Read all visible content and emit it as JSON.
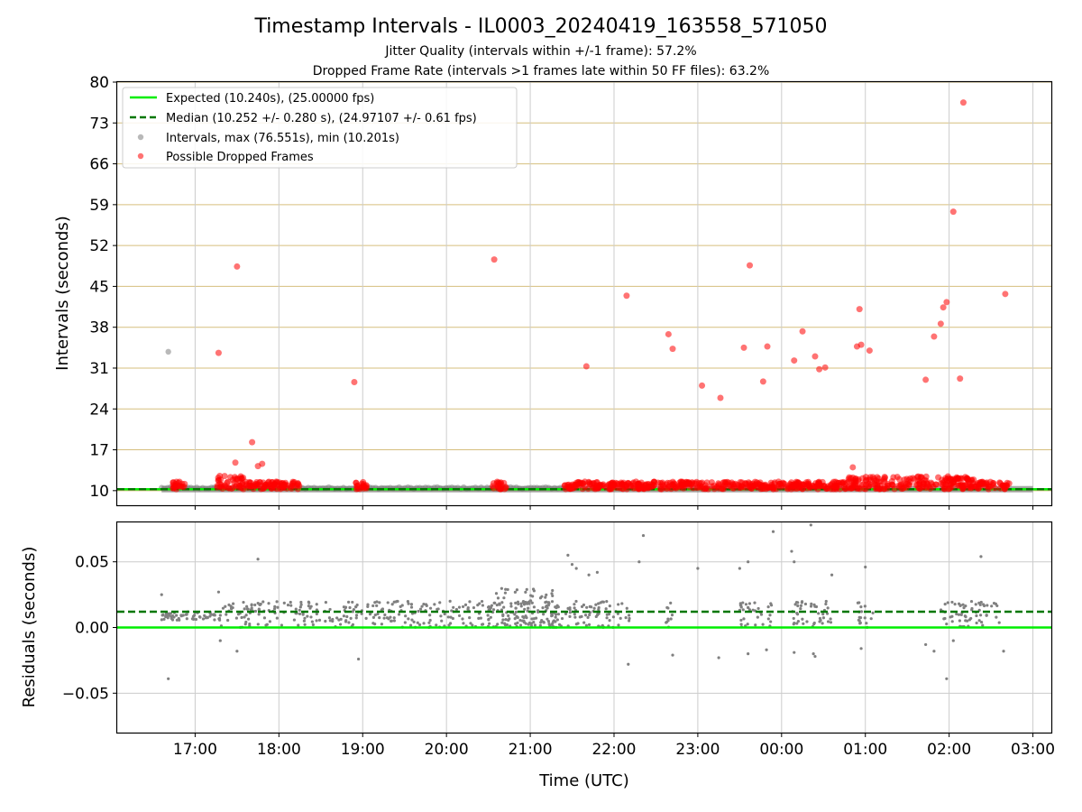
{
  "chart_data": [
    {
      "type": "scatter",
      "title": "Timestamp Intervals - IL0003_20240419_163558_571050",
      "subtitle_1": "Jitter Quality (intervals within +/-1 frame): 57.2%",
      "subtitle_2": "Dropped Frame Rate (intervals >1 frames late within 50 FF files): 63.2%",
      "xlabel": "",
      "ylabel": "Intervals (seconds)",
      "xlim_hours": [
        16.07,
        27.22
      ],
      "ylim": [
        7.5,
        80
      ],
      "yticks": [
        10,
        17,
        24,
        31,
        38,
        45,
        52,
        59,
        66,
        73,
        80
      ],
      "grid": true,
      "legend_position": "top-left",
      "legend": [
        "Expected (10.240s), (25.00000 fps)",
        "Median (10.252 +/- 0.280 s), (24.97107 +/- 0.61 fps)",
        "Intervals, max (76.551s), min (10.201s)",
        "Possible Dropped Frames"
      ],
      "series": [
        {
          "name": "Expected (10.240s), (25.00000 fps)",
          "kind": "hline",
          "y": 10.24,
          "color": "#00ee00"
        },
        {
          "name": "Median (10.252 +/- 0.280 s), (24.97107 +/- 0.61 fps)",
          "kind": "hline",
          "y": 10.252,
          "color": "#007700"
        },
        {
          "name": "Intervals, max (76.551s), min (10.201s)",
          "kind": "scatter",
          "color": "#808080",
          "band": [
            [
              16.6,
              27.0
            ]
          ],
          "points": [
            [
              16.68,
              33.8
            ]
          ]
        },
        {
          "name": "Possible Dropped Frames",
          "kind": "scatter",
          "color": "#ff0000",
          "bands": [
            [
              16.72,
              16.88
            ],
            [
              17.25,
              18.25
            ],
            [
              18.9,
              19.05
            ],
            [
              20.55,
              20.72
            ],
            [
              21.4,
              26.55
            ],
            [
              26.6,
              26.72
            ]
          ],
          "points": [
            [
              17.28,
              33.6
            ],
            [
              17.48,
              14.8
            ],
            [
              17.5,
              48.4
            ],
            [
              17.68,
              18.3
            ],
            [
              17.75,
              14.2
            ],
            [
              17.8,
              14.6
            ],
            [
              18.9,
              28.6
            ],
            [
              20.57,
              49.6
            ],
            [
              21.67,
              31.3
            ],
            [
              22.15,
              43.4
            ],
            [
              22.65,
              36.8
            ],
            [
              22.7,
              34.3
            ],
            [
              23.05,
              28.0
            ],
            [
              23.27,
              25.9
            ],
            [
              23.55,
              34.5
            ],
            [
              23.62,
              48.6
            ],
            [
              23.78,
              28.7
            ],
            [
              23.83,
              34.7
            ],
            [
              24.15,
              32.3
            ],
            [
              24.25,
              37.3
            ],
            [
              24.4,
              33.0
            ],
            [
              24.45,
              30.8
            ],
            [
              24.52,
              31.1
            ],
            [
              24.85,
              14.0
            ],
            [
              24.9,
              34.7
            ],
            [
              24.93,
              41.1
            ],
            [
              24.95,
              35.0
            ],
            [
              25.05,
              34.0
            ],
            [
              25.72,
              29.0
            ],
            [
              25.82,
              36.4
            ],
            [
              25.9,
              38.6
            ],
            [
              25.93,
              41.4
            ],
            [
              25.97,
              42.3
            ],
            [
              26.05,
              57.8
            ],
            [
              26.13,
              29.2
            ],
            [
              26.17,
              76.5
            ],
            [
              26.67,
              43.7
            ]
          ]
        }
      ]
    },
    {
      "type": "scatter",
      "title": "",
      "xlabel": "Time (UTC)",
      "ylabel": "Residuals (seconds)",
      "xlim_hours": [
        16.07,
        27.22
      ],
      "ylim": [
        -0.08,
        0.08
      ],
      "yticks": [
        -0.05,
        0.0,
        0.05
      ],
      "ytick_labels": [
        "−0.05",
        "0.00",
        "0.05"
      ],
      "xticks_hours": [
        17,
        18,
        19,
        20,
        21,
        22,
        23,
        24,
        25,
        26,
        27
      ],
      "xtick_labels": [
        "17:00",
        "18:00",
        "19:00",
        "20:00",
        "21:00",
        "22:00",
        "23:00",
        "00:00",
        "01:00",
        "02:00",
        "03:00"
      ],
      "grid": true,
      "series": [
        {
          "name": "",
          "kind": "hline",
          "y": 0.0,
          "color": "#00ee00"
        },
        {
          "name": "",
          "kind": "hline",
          "y": 0.012,
          "color": "#007700"
        },
        {
          "name": "",
          "kind": "scatter",
          "color": "#808080",
          "bands": [
            [
              16.6,
              17.3,
              0.005,
              0.012
            ],
            [
              17.3,
              21.4,
              0.0,
              0.02
            ],
            [
              20.5,
              21.3,
              0.0,
              0.03
            ],
            [
              21.4,
              22.2,
              0.0,
              0.02
            ],
            [
              22.6,
              22.7,
              0.0,
              0.02
            ],
            [
              23.5,
              23.9,
              0.0,
              0.02
            ],
            [
              24.1,
              24.6,
              0.0,
              0.02
            ],
            [
              24.9,
              25.1,
              0.0,
              0.02
            ],
            [
              25.9,
              26.6,
              0.0,
              0.02
            ]
          ],
          "points": [
            [
              16.6,
              0.025
            ],
            [
              16.68,
              -0.039
            ],
            [
              17.28,
              0.027
            ],
            [
              17.3,
              -0.01
            ],
            [
              17.5,
              -0.018
            ],
            [
              17.75,
              0.052
            ],
            [
              18.95,
              -0.024
            ],
            [
              21.45,
              0.055
            ],
            [
              21.5,
              0.048
            ],
            [
              21.55,
              0.045
            ],
            [
              21.7,
              0.04
            ],
            [
              21.8,
              0.042
            ],
            [
              22.17,
              -0.028
            ],
            [
              22.3,
              0.05
            ],
            [
              22.35,
              0.07
            ],
            [
              22.7,
              -0.021
            ],
            [
              23.0,
              0.045
            ],
            [
              23.25,
              -0.023
            ],
            [
              23.5,
              0.045
            ],
            [
              23.6,
              0.05
            ],
            [
              23.6,
              -0.02
            ],
            [
              23.82,
              -0.017
            ],
            [
              23.9,
              0.073
            ],
            [
              24.12,
              0.058
            ],
            [
              24.15,
              0.05
            ],
            [
              24.15,
              -0.019
            ],
            [
              24.38,
              -0.02
            ],
            [
              24.4,
              -0.022
            ],
            [
              24.35,
              0.078
            ],
            [
              24.6,
              0.04
            ],
            [
              24.95,
              -0.016
            ],
            [
              25.0,
              0.046
            ],
            [
              25.72,
              -0.013
            ],
            [
              25.82,
              -0.018
            ],
            [
              25.97,
              -0.039
            ],
            [
              26.05,
              -0.01
            ],
            [
              26.38,
              0.054
            ],
            [
              26.65,
              -0.018
            ]
          ]
        }
      ]
    }
  ]
}
